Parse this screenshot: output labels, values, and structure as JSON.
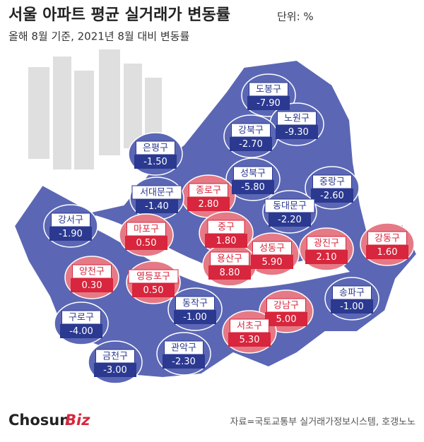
{
  "header": {
    "title": "서울 아파트 평균 실거래가 변동률",
    "unit": "단위: %",
    "subtitle": "올해 8월 기준, 2021년 8월 대비 변동률"
  },
  "districts": [
    {
      "name": "도봉구",
      "value": -7.9,
      "label": "-7.90"
    },
    {
      "name": "노원구",
      "value": -9.3,
      "label": "-9.30"
    },
    {
      "name": "강북구",
      "value": -2.7,
      "label": "-2.70"
    },
    {
      "name": "은평구",
      "value": -1.5,
      "label": "-1.50"
    },
    {
      "name": "성북구",
      "value": -5.8,
      "label": "-5.80"
    },
    {
      "name": "중랑구",
      "value": -2.6,
      "label": "-2.60"
    },
    {
      "name": "종로구",
      "value": 2.8,
      "label": "2.80"
    },
    {
      "name": "서대문구",
      "value": -1.4,
      "label": "-1.40"
    },
    {
      "name": "동대문구",
      "value": -2.2,
      "label": "-2.20"
    },
    {
      "name": "강서구",
      "value": -1.9,
      "label": "-1.90"
    },
    {
      "name": "마포구",
      "value": 0.5,
      "label": "0.50"
    },
    {
      "name": "중구",
      "value": 1.8,
      "label": "1.80"
    },
    {
      "name": "광진구",
      "value": 2.1,
      "label": "2.10"
    },
    {
      "name": "강동구",
      "value": 1.6,
      "label": "1.60"
    },
    {
      "name": "성동구",
      "value": 5.9,
      "label": "5.90"
    },
    {
      "name": "용산구",
      "value": 8.8,
      "label": "8.80"
    },
    {
      "name": "양천구",
      "value": 0.3,
      "label": "0.30"
    },
    {
      "name": "영등포구",
      "value": 0.5,
      "label": "0.50"
    },
    {
      "name": "송파구",
      "value": -1.0,
      "label": "-1.00"
    },
    {
      "name": "동작구",
      "value": -1.0,
      "label": "-1.00"
    },
    {
      "name": "강남구",
      "value": 5.0,
      "label": "5.00"
    },
    {
      "name": "구로구",
      "value": -4.0,
      "label": "-4.00"
    },
    {
      "name": "서초구",
      "value": 5.3,
      "label": "5.30"
    },
    {
      "name": "관악구",
      "value": -2.3,
      "label": "-2.30"
    },
    {
      "name": "금천구",
      "value": -3.0,
      "label": "-3.00"
    }
  ],
  "footer": {
    "logo": {
      "main": "Chosun",
      "accent": "Biz"
    },
    "source": "자료=국토교통부 실거래가정보시스템, 호갱노노"
  }
}
